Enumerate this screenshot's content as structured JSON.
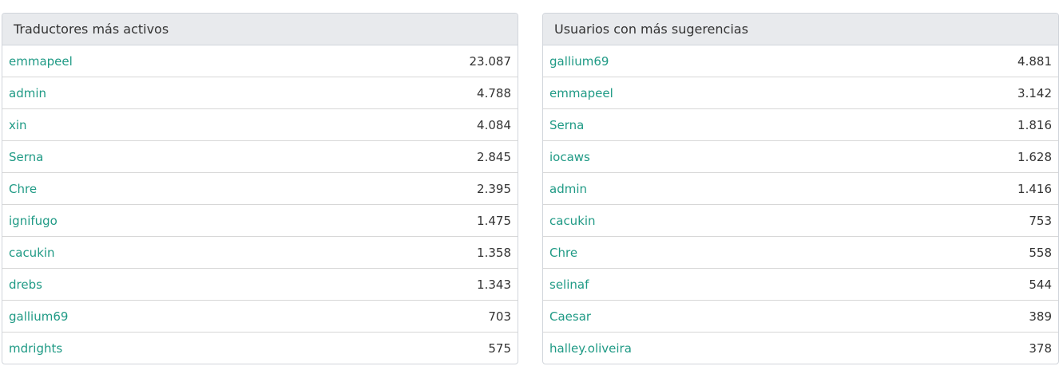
{
  "colors": {
    "link": "#1f9a85",
    "heading_bg": "#e8eaed",
    "border": "#d1d5db",
    "text": "#333333"
  },
  "panels": [
    {
      "title": "Traductores más activos",
      "rows": [
        {
          "user": "emmapeel",
          "count": "23.087"
        },
        {
          "user": "admin",
          "count": "4.788"
        },
        {
          "user": "xin",
          "count": "4.084"
        },
        {
          "user": "Serna",
          "count": "2.845"
        },
        {
          "user": "Chre",
          "count": "2.395"
        },
        {
          "user": "ignifugo",
          "count": "1.475"
        },
        {
          "user": "cacukin",
          "count": "1.358"
        },
        {
          "user": "drebs",
          "count": "1.343"
        },
        {
          "user": "gallium69",
          "count": "703"
        },
        {
          "user": "mdrights",
          "count": "575"
        }
      ]
    },
    {
      "title": "Usuarios con más sugerencias",
      "rows": [
        {
          "user": "gallium69",
          "count": "4.881"
        },
        {
          "user": "emmapeel",
          "count": "3.142"
        },
        {
          "user": "Serna",
          "count": "1.816"
        },
        {
          "user": "iocaws",
          "count": "1.628"
        },
        {
          "user": "admin",
          "count": "1.416"
        },
        {
          "user": "cacukin",
          "count": "753"
        },
        {
          "user": "Chre",
          "count": "558"
        },
        {
          "user": "selinaf",
          "count": "544"
        },
        {
          "user": "Caesar",
          "count": "389"
        },
        {
          "user": "halley.oliveira",
          "count": "378"
        }
      ]
    }
  ]
}
